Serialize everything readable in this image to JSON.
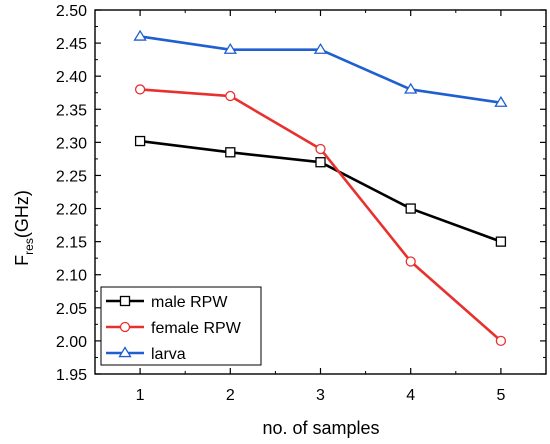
{
  "chart_data": {
    "type": "line",
    "x": [
      1,
      2,
      3,
      4,
      5
    ],
    "series": [
      {
        "name": "male RPW",
        "values": [
          2.302,
          2.285,
          2.27,
          2.2,
          2.15
        ],
        "color": "#000000",
        "marker": "square"
      },
      {
        "name": "female RPW",
        "values": [
          2.38,
          2.37,
          2.29,
          2.12,
          2.0
        ],
        "color": "#e8312f",
        "marker": "circle"
      },
      {
        "name": "larva",
        "values": [
          2.46,
          2.44,
          2.44,
          2.38,
          2.36
        ],
        "color": "#1f5fd0",
        "marker": "triangle"
      }
    ],
    "xlabel": "no. of samples",
    "ylabel": {
      "main": "F",
      "sub": "res",
      "unit": "(GHz)"
    },
    "xlim": [
      0.5,
      5.5
    ],
    "ylim": [
      1.95,
      2.5
    ],
    "xticks": [
      "1",
      "2",
      "3",
      "4",
      "5"
    ],
    "yticks": [
      "1.95",
      "2.00",
      "2.05",
      "2.10",
      "2.15",
      "2.20",
      "2.25",
      "2.30",
      "2.35",
      "2.40",
      "2.45",
      "2.50"
    ],
    "grid": false,
    "legend_position": "bottom-left"
  }
}
